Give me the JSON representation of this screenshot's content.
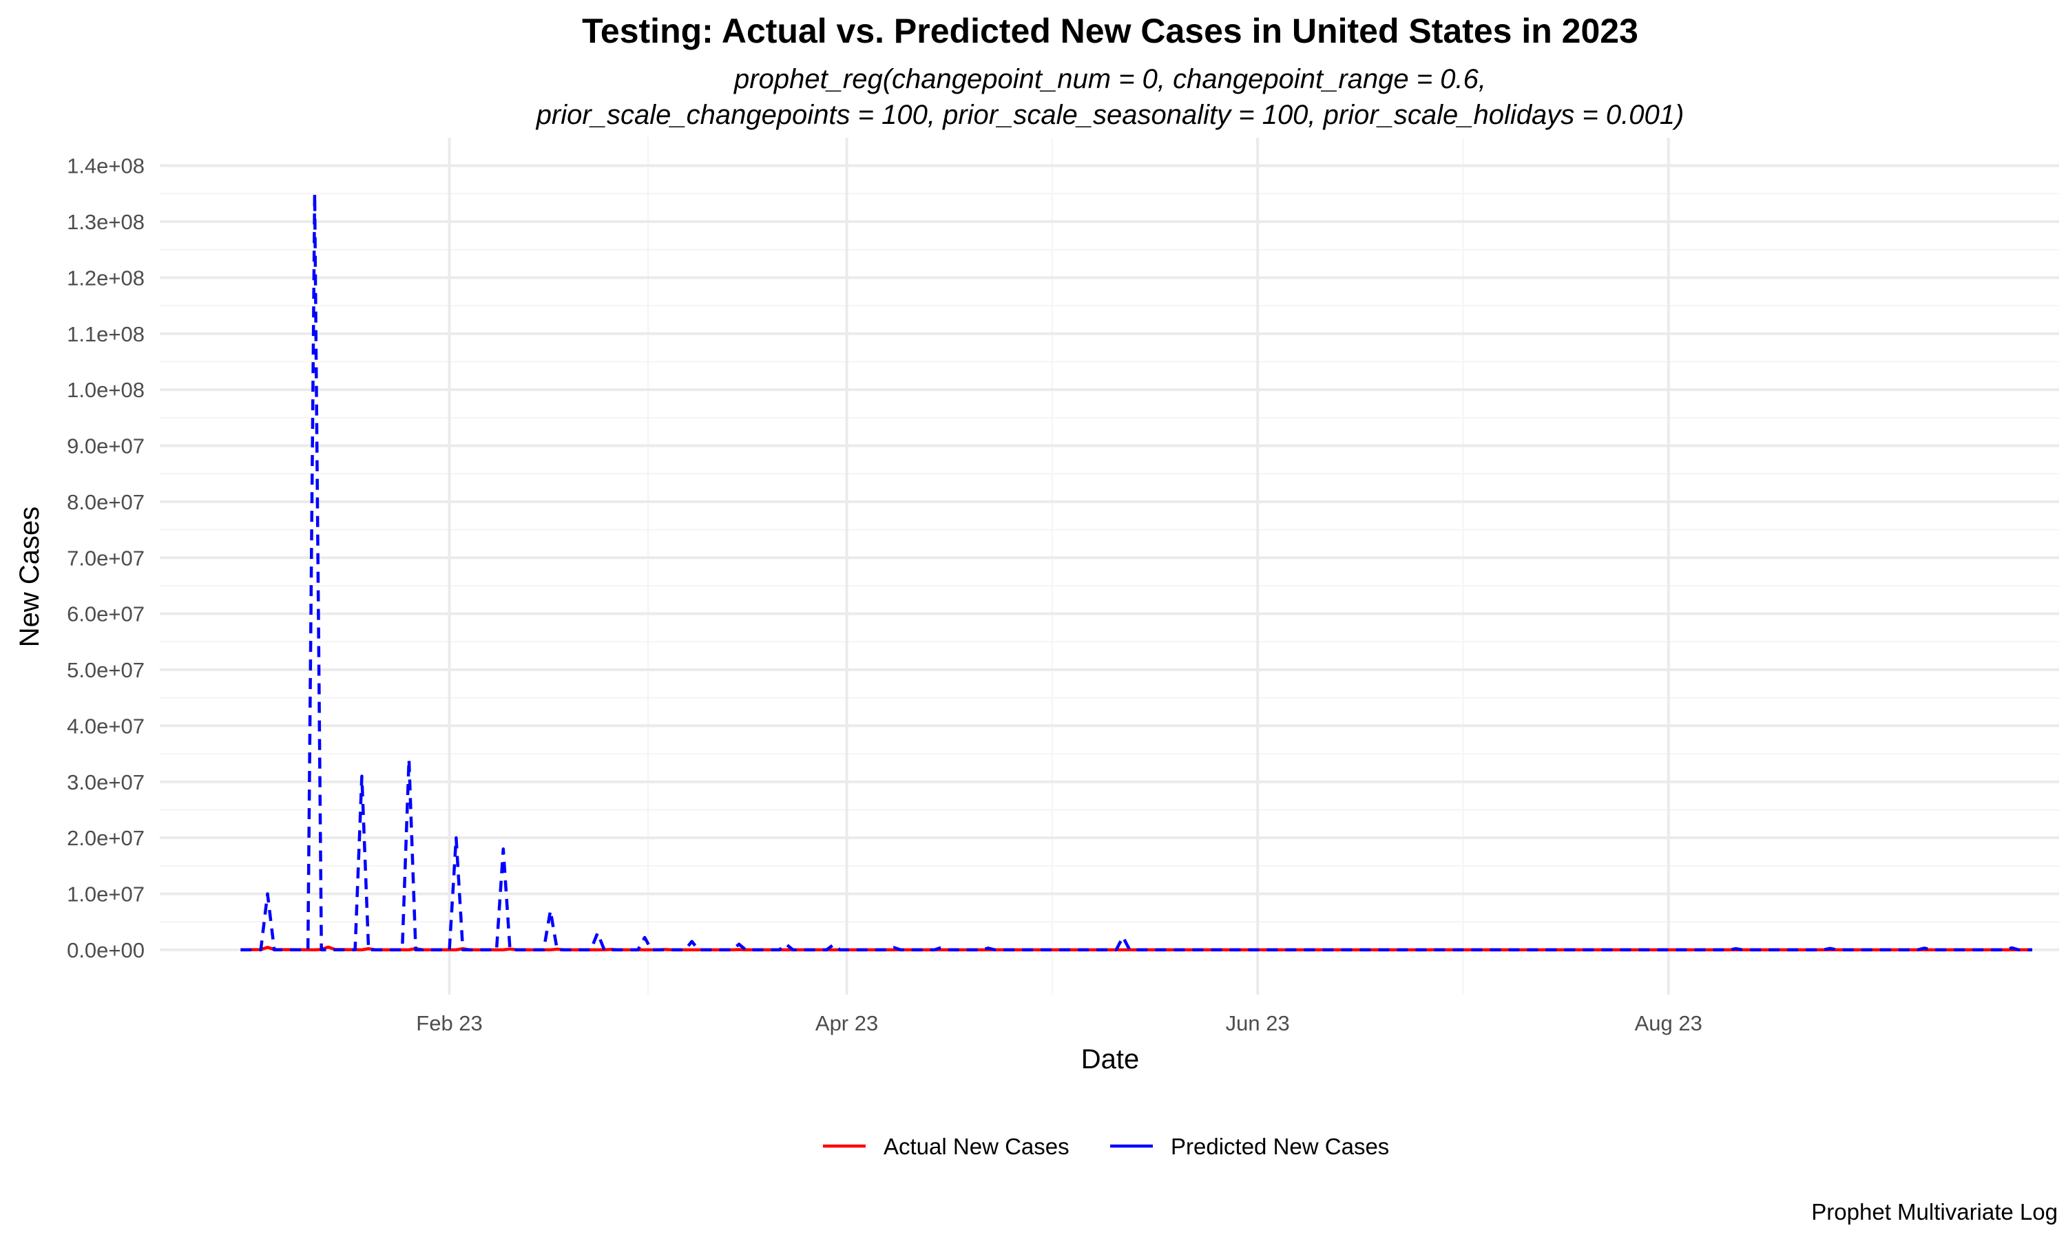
{
  "chart_data": {
    "type": "line",
    "title": "Testing: Actual vs. Predicted New Cases in United States in 2023",
    "subtitle_line1": "prophet_reg(changepoint_num = 0, changepoint_range = 0.6,",
    "subtitle_line2": "prior_scale_changepoints = 100, prior_scale_seasonality = 100, prior_scale_holidays = 0.001)",
    "xlabel": "Date",
    "ylabel": "New Cases",
    "caption": "Prophet Multivariate Log",
    "x_range": [
      "2022-12-20",
      "2023-09-28"
    ],
    "x_ticks": [
      {
        "date": "2023-02-01",
        "label": "Feb 23"
      },
      {
        "date": "2023-04-01",
        "label": "Apr 23"
      },
      {
        "date": "2023-06-01",
        "label": "Jun 23"
      },
      {
        "date": "2023-08-01",
        "label": "Aug 23"
      }
    ],
    "ylim": [
      -8000000,
      145000000
    ],
    "y_ticks": [
      {
        "value": 0,
        "label": "0.0e+00"
      },
      {
        "value": 10000000,
        "label": "1.0e+07"
      },
      {
        "value": 20000000,
        "label": "2.0e+07"
      },
      {
        "value": 30000000,
        "label": "3.0e+07"
      },
      {
        "value": 40000000,
        "label": "4.0e+07"
      },
      {
        "value": 50000000,
        "label": "5.0e+07"
      },
      {
        "value": 60000000,
        "label": "6.0e+07"
      },
      {
        "value": 70000000,
        "label": "7.0e+07"
      },
      {
        "value": 80000000,
        "label": "8.0e+07"
      },
      {
        "value": 90000000,
        "label": "9.0e+07"
      },
      {
        "value": 100000000,
        "label": "1.0e+08"
      },
      {
        "value": 110000000,
        "label": "1.1e+08"
      },
      {
        "value": 120000000,
        "label": "1.2e+08"
      },
      {
        "value": 130000000,
        "label": "1.3e+08"
      },
      {
        "value": 140000000,
        "label": "1.4e+08"
      }
    ],
    "legend_position": "bottom",
    "series": [
      {
        "name": "Actual New Cases",
        "color": "#ff0000",
        "dash": "solid",
        "points": [
          [
            "2023-01-01",
            0
          ],
          [
            "2023-01-04",
            50000
          ],
          [
            "2023-01-05",
            450000
          ],
          [
            "2023-01-06",
            50000
          ],
          [
            "2023-01-12",
            0
          ],
          [
            "2023-01-13",
            60000
          ],
          [
            "2023-01-14",
            500000
          ],
          [
            "2023-01-15",
            60000
          ],
          [
            "2023-01-19",
            0
          ],
          [
            "2023-01-20",
            200000
          ],
          [
            "2023-01-21",
            0
          ],
          [
            "2023-01-26",
            0
          ],
          [
            "2023-01-27",
            220000
          ],
          [
            "2023-01-28",
            0
          ],
          [
            "2023-02-02",
            0
          ],
          [
            "2023-02-03",
            200000
          ],
          [
            "2023-02-04",
            0
          ],
          [
            "2023-02-09",
            0
          ],
          [
            "2023-02-10",
            150000
          ],
          [
            "2023-02-11",
            0
          ],
          [
            "2023-02-16",
            0
          ],
          [
            "2023-02-17",
            120000
          ],
          [
            "2023-02-18",
            0
          ],
          [
            "2023-02-24",
            0
          ],
          [
            "2023-02-25",
            80000
          ],
          [
            "2023-02-26",
            0
          ],
          [
            "2023-03-04",
            0
          ],
          [
            "2023-03-05",
            60000
          ],
          [
            "2023-03-06",
            0
          ],
          [
            "2023-03-15",
            0
          ],
          [
            "2023-03-16",
            50000
          ],
          [
            "2023-03-17",
            0
          ],
          [
            "2023-09-24",
            0
          ]
        ]
      },
      {
        "name": "Predicted New Cases",
        "color": "#0000ff",
        "dash": "dashed",
        "points": [
          [
            "2023-01-01",
            0
          ],
          [
            "2023-01-04",
            0
          ],
          [
            "2023-01-05",
            10000000
          ],
          [
            "2023-01-06",
            0
          ],
          [
            "2023-01-11",
            0
          ],
          [
            "2023-01-12",
            135000000
          ],
          [
            "2023-01-13",
            0
          ],
          [
            "2023-01-18",
            0
          ],
          [
            "2023-01-19",
            31000000
          ],
          [
            "2023-01-20",
            0
          ],
          [
            "2023-01-25",
            0
          ],
          [
            "2023-01-26",
            34000000
          ],
          [
            "2023-01-27",
            0
          ],
          [
            "2023-02-01",
            0
          ],
          [
            "2023-02-02",
            20000000
          ],
          [
            "2023-02-03",
            0
          ],
          [
            "2023-02-08",
            0
          ],
          [
            "2023-02-09",
            18000000
          ],
          [
            "2023-02-10",
            0
          ],
          [
            "2023-02-15",
            0
          ],
          [
            "2023-02-16",
            7000000
          ],
          [
            "2023-02-17",
            0
          ],
          [
            "2023-02-22",
            0
          ],
          [
            "2023-02-23",
            3000000
          ],
          [
            "2023-02-24",
            0
          ],
          [
            "2023-03-01",
            0
          ],
          [
            "2023-03-02",
            2200000
          ],
          [
            "2023-03-03",
            0
          ],
          [
            "2023-03-08",
            0
          ],
          [
            "2023-03-09",
            1500000
          ],
          [
            "2023-03-10",
            0
          ],
          [
            "2023-03-15",
            0
          ],
          [
            "2023-03-16",
            1000000
          ],
          [
            "2023-03-17",
            0
          ],
          [
            "2023-03-22",
            0
          ],
          [
            "2023-03-23",
            1000000
          ],
          [
            "2023-03-24",
            0
          ],
          [
            "2023-03-29",
            0
          ],
          [
            "2023-03-30",
            900000
          ],
          [
            "2023-03-31",
            0
          ],
          [
            "2023-04-07",
            0
          ],
          [
            "2023-04-08",
            400000
          ],
          [
            "2023-04-09",
            0
          ],
          [
            "2023-04-14",
            0
          ],
          [
            "2023-04-15",
            400000
          ],
          [
            "2023-04-16",
            0
          ],
          [
            "2023-04-21",
            0
          ],
          [
            "2023-04-22",
            300000
          ],
          [
            "2023-04-23",
            0
          ],
          [
            "2023-05-11",
            0
          ],
          [
            "2023-05-12",
            2300000
          ],
          [
            "2023-05-13",
            0
          ],
          [
            "2023-08-10",
            0
          ],
          [
            "2023-08-11",
            200000
          ],
          [
            "2023-08-12",
            0
          ],
          [
            "2023-08-24",
            0
          ],
          [
            "2023-08-25",
            250000
          ],
          [
            "2023-08-26",
            0
          ],
          [
            "2023-09-07",
            0
          ],
          [
            "2023-09-08",
            300000
          ],
          [
            "2023-09-09",
            0
          ],
          [
            "2023-09-20",
            0
          ],
          [
            "2023-09-21",
            350000
          ],
          [
            "2023-09-22",
            0
          ],
          [
            "2023-09-24",
            0
          ]
        ]
      }
    ]
  }
}
